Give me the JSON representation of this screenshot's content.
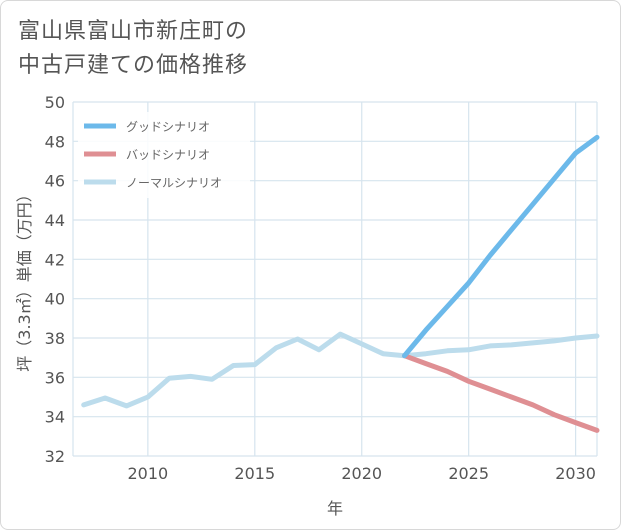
{
  "title_lines": [
    "富山県富山市新庄町の",
    "中古戸建ての価格推移"
  ],
  "chart_data": {
    "type": "line",
    "xlabel": "年",
    "ylabel": "坪（3.3㎡）単価（万円）",
    "xlim": [
      2006.5,
      2031
    ],
    "ylim": [
      32,
      50
    ],
    "xticks": [
      2010,
      2015,
      2020,
      2025,
      2030
    ],
    "yticks": [
      32,
      34,
      36,
      38,
      40,
      42,
      44,
      46,
      48,
      50
    ],
    "grid": true,
    "legend_position": "top-left",
    "series": [
      {
        "name": "グッドシナリオ",
        "color": "#6cb9ea",
        "x": [
          2022,
          2023,
          2024,
          2025,
          2026,
          2027,
          2028,
          2029,
          2030,
          2031
        ],
        "y": [
          37.1,
          38.4,
          39.6,
          40.8,
          42.2,
          43.5,
          44.8,
          46.1,
          47.4,
          48.2
        ]
      },
      {
        "name": "バッドシナリオ",
        "color": "#df8f93",
        "x": [
          2022,
          2023,
          2024,
          2025,
          2026,
          2027,
          2028,
          2029,
          2030,
          2031
        ],
        "y": [
          37.1,
          36.7,
          36.3,
          35.8,
          35.4,
          35.0,
          34.6,
          34.1,
          33.7,
          33.3
        ]
      },
      {
        "name": "ノーマルシナリオ",
        "color": "#bcdcec",
        "x": [
          2007,
          2008,
          2009,
          2010,
          2011,
          2012,
          2013,
          2014,
          2015,
          2016,
          2017,
          2018,
          2019,
          2020,
          2021,
          2022,
          2023,
          2024,
          2025,
          2026,
          2027,
          2028,
          2029,
          2030,
          2031
        ],
        "y": [
          34.6,
          34.95,
          34.55,
          35.0,
          35.95,
          36.05,
          35.9,
          36.6,
          36.65,
          37.5,
          37.95,
          37.4,
          38.2,
          37.7,
          37.2,
          37.1,
          37.2,
          37.35,
          37.4,
          37.6,
          37.65,
          37.75,
          37.85,
          38.0,
          38.1
        ]
      }
    ]
  }
}
